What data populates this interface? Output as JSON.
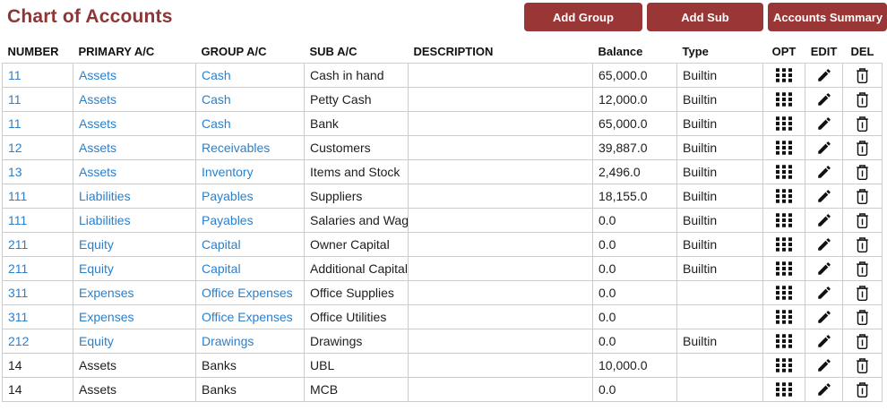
{
  "page": {
    "title": "Chart of Accounts"
  },
  "toolbar": {
    "buttons": [
      "Add Group",
      "Add Sub",
      "Accounts Summary"
    ]
  },
  "colors": {
    "title_maroon": "#8e3636",
    "button_maroon": "#993737",
    "link_blue": "#2a80cd",
    "border_gray": "#cccccc"
  },
  "table": {
    "headers": [
      "NUMBER",
      "PRIMARY A/C",
      "GROUP A/C",
      "SUB A/C",
      "DESCRIPTION",
      "Balance",
      "Type",
      "OPT",
      "EDIT",
      "DEL"
    ],
    "action_icons": [
      "grid-dots-icon",
      "pencil-icon",
      "trash-icon"
    ],
    "rows": [
      {
        "number": "11",
        "primary": "Assets",
        "group": "Cash",
        "sub": "Cash in hand",
        "description": "",
        "balance": "65,000.0",
        "type": "Builtin",
        "linked": true
      },
      {
        "number": "11",
        "primary": "Assets",
        "group": "Cash",
        "sub": "Petty Cash",
        "description": "",
        "balance": "12,000.0",
        "type": "Builtin",
        "linked": true
      },
      {
        "number": "11",
        "primary": "Assets",
        "group": "Cash",
        "sub": "Bank",
        "description": "",
        "balance": "65,000.0",
        "type": "Builtin",
        "linked": true
      },
      {
        "number": "12",
        "primary": "Assets",
        "group": "Receivables",
        "sub": "Customers",
        "description": "",
        "balance": "39,887.0",
        "type": "Builtin",
        "linked": true
      },
      {
        "number": "13",
        "primary": "Assets",
        "group": "Inventory",
        "sub": "Items and Stock",
        "description": "",
        "balance": "2,496.0",
        "type": "Builtin",
        "linked": true
      },
      {
        "number": "111",
        "primary": "Liabilities",
        "group": "Payables",
        "sub": "Suppliers",
        "description": "",
        "balance": "18,155.0",
        "type": "Builtin",
        "linked": true
      },
      {
        "number": "111",
        "primary": "Liabilities",
        "group": "Payables",
        "sub": "Salaries and Wages",
        "description": "",
        "balance": "0.0",
        "type": "Builtin",
        "linked": true
      },
      {
        "number": "211",
        "primary": "Equity",
        "group": "Capital",
        "sub": "Owner Capital",
        "description": "",
        "balance": "0.0",
        "type": "Builtin",
        "linked": true
      },
      {
        "number": "211",
        "primary": "Equity",
        "group": "Capital",
        "sub": "Additional Capital",
        "description": "",
        "balance": "0.0",
        "type": "Builtin",
        "linked": true
      },
      {
        "number": "311",
        "primary": "Expenses",
        "group": "Office Expenses",
        "sub": "Office Supplies",
        "description": "",
        "balance": "0.0",
        "type": "",
        "linked": true
      },
      {
        "number": "311",
        "primary": "Expenses",
        "group": "Office Expenses",
        "sub": "Office Utilities",
        "description": "",
        "balance": "0.0",
        "type": "",
        "linked": true
      },
      {
        "number": "212",
        "primary": "Equity",
        "group": "Drawings",
        "sub": "Drawings",
        "description": "",
        "balance": "0.0",
        "type": "Builtin",
        "linked": true
      },
      {
        "number": "14",
        "primary": "Assets",
        "group": "Banks",
        "sub": "UBL",
        "description": "",
        "balance": "10,000.0",
        "type": "",
        "linked": false
      },
      {
        "number": "14",
        "primary": "Assets",
        "group": "Banks",
        "sub": "MCB",
        "description": "",
        "balance": "0.0",
        "type": "",
        "linked": false
      }
    ]
  }
}
